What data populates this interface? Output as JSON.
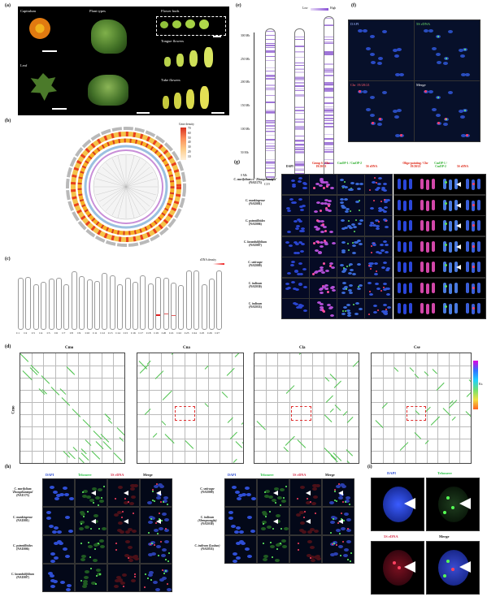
{
  "panels": {
    "a": {
      "label": "(a)",
      "capitulum": "Capitulum",
      "leaf": "Leaf",
      "plant_types": "Plant types",
      "flower_buds": "Flower buds",
      "tongue_flowers": "Tongue flowers",
      "tube_flowers": "Tube flowers"
    },
    "b": {
      "label": "(b)",
      "legend_title": "Gene density",
      "legend_values": [
        "70",
        "60",
        "50",
        "40",
        "30",
        "20",
        "10"
      ]
    },
    "c": {
      "label": "(c)",
      "chromosomes": [
        "C1",
        "C2",
        "C3",
        "C4",
        "C5",
        "C6",
        "C7",
        "C8",
        "C9",
        "C10",
        "C11",
        "C12",
        "C13",
        "C14",
        "C15",
        "C16",
        "C17",
        "C18",
        "C19",
        "C20",
        "C21",
        "C22",
        "C23",
        "C24",
        "C25",
        "C26",
        "C27"
      ],
      "legend": "rDNA density"
    },
    "e": {
      "label": "(e)",
      "legend_low": "Low",
      "legend_high": "High",
      "axis_ticks": [
        "300 Mb",
        "250 Mb",
        "200 Mb",
        "150 Mb",
        "100 Mb",
        "50 Mb",
        "0 Mb"
      ],
      "chromosomes": [
        "C19",
        "C20",
        "C21"
      ]
    },
    "f": {
      "label": "(f)",
      "titles": [
        "DAPI",
        "5S rDNA",
        "Chr 19/20/21",
        "Merge"
      ]
    },
    "g": {
      "label": "(g)",
      "headers": [
        "DAPI",
        "Group 6 / Chr 19/20/21",
        "CmOP-1 / CmOP-2",
        "5S rDNA",
        "Oligo-painting / Chr 19/20/21",
        "CmOP-1 / CmOP-2",
        "5S rDNA"
      ],
      "species": [
        {
          "name": "C. morifolium cv. 'Zhongshanzigui'",
          "code": "(NAU173)"
        },
        {
          "name": "C. mankingense",
          "code": "(NAU001)"
        },
        {
          "name": "C. potentilloides",
          "code": "(NAU006)"
        },
        {
          "name": "C. lavandulifolium",
          "code": "(NAU007)"
        },
        {
          "name": "C. seticuspe",
          "code": "(NAU009)"
        },
        {
          "name": "C. indicum",
          "code": "(NAU030)"
        },
        {
          "name": "C. indicum",
          "code": "(NAU033)"
        }
      ]
    },
    "d": {
      "label": "(d)",
      "titles": [
        "Cmo",
        "Cna",
        "Cla",
        "Cse"
      ],
      "ylabel": "Cmo",
      "ks_label": "Ks"
    },
    "h": {
      "label": "(h)",
      "titles": [
        "DAPI",
        "Telomere",
        "5S rDNA",
        "Merge"
      ],
      "left_species": [
        {
          "name": "C. morifolium 'Zhongshanzigui'",
          "code": "(NAU173)"
        },
        {
          "name": "C. mankingense",
          "code": "(NAU001)"
        },
        {
          "name": "C. potentilloides",
          "code": "(NAU006)"
        },
        {
          "name": "C. lavandulifolium",
          "code": "(NAU007)"
        }
      ],
      "right_species": [
        {
          "name": "C. seticuspe",
          "code": "(NAU009)"
        },
        {
          "name": "C. indicum (Shengnongjia)",
          "code": "(NAU030)"
        },
        {
          "name": "C. indicum (Lushan)",
          "code": "(NAU033)"
        }
      ]
    },
    "i": {
      "label": "(i)",
      "titles": [
        "DAPI",
        "Telomere",
        "5S rDNA",
        "Merge"
      ]
    }
  },
  "colors": {
    "dapi": "#2a4bd0",
    "telomere": "#2ec44a",
    "rdna": "#d8304a",
    "chrom_band": "#9b6fd6",
    "synteny": "#4fc24f"
  }
}
